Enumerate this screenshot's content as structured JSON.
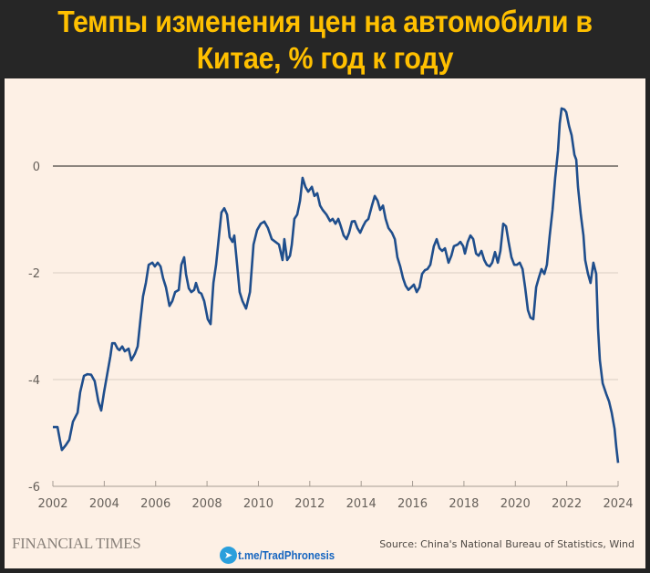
{
  "title": "Темпы изменения цен на автомобили в Китае, % год к году",
  "branding": {
    "logo": "FINANCIAL TIMES",
    "telegram": "t.me/TradPhronesis",
    "telegram_icon": "telegram-icon"
  },
  "source": "Source: China's National Bureau of Statistics, Wind",
  "colors": {
    "line": "#1f4e8c",
    "title": "#ffc000",
    "background": "#fdf0e5",
    "header": "#262626"
  },
  "chart_data": {
    "type": "line",
    "title": "Темпы изменения цен на автомобили в Китае, % год к году",
    "xlabel": "",
    "ylabel": "",
    "xlim": [
      2002,
      2024
    ],
    "ylim": [
      -6,
      1.2
    ],
    "xticks": [
      "2002",
      "2004",
      "2006",
      "2008",
      "2010",
      "2012",
      "2014",
      "2016",
      "2018",
      "2020",
      "2022",
      "2024"
    ],
    "yticks": [
      "0",
      "-2",
      "-4",
      "-6"
    ],
    "grid": true,
    "legend": "none",
    "x": [
      2002.0,
      2002.18,
      2002.28,
      2002.35,
      2002.5,
      2002.64,
      2002.78,
      2002.96,
      2003.06,
      2003.21,
      2003.35,
      2003.49,
      2003.63,
      2003.77,
      2003.88,
      2003.99,
      2004.13,
      2004.24,
      2004.31,
      2004.41,
      2004.52,
      2004.59,
      2004.7,
      2004.8,
      2004.95,
      2005.05,
      2005.19,
      2005.3,
      2005.41,
      2005.51,
      2005.62,
      2005.73,
      2005.87,
      2005.97,
      2006.08,
      2006.19,
      2006.29,
      2006.4,
      2006.54,
      2006.65,
      2006.76,
      2006.9,
      2007.0,
      2007.11,
      2007.18,
      2007.29,
      2007.39,
      2007.5,
      2007.57,
      2007.68,
      2007.78,
      2007.89,
      2008.03,
      2008.14,
      2008.25,
      2008.35,
      2008.46,
      2008.56,
      2008.67,
      2008.78,
      2008.88,
      2008.99,
      2009.06,
      2009.17,
      2009.27,
      2009.38,
      2009.52,
      2009.67,
      2009.81,
      2009.95,
      2010.09,
      2010.23,
      2010.37,
      2010.52,
      2010.66,
      2010.8,
      2010.94,
      2011.01,
      2011.12,
      2011.23,
      2011.3,
      2011.4,
      2011.51,
      2011.62,
      2011.72,
      2011.83,
      2011.94,
      2012.08,
      2012.18,
      2012.29,
      2012.4,
      2012.5,
      2012.65,
      2012.79,
      2012.89,
      2013.0,
      2013.11,
      2013.21,
      2013.32,
      2013.43,
      2013.53,
      2013.64,
      2013.75,
      2013.85,
      2013.96,
      2014.07,
      2014.17,
      2014.28,
      2014.42,
      2014.53,
      2014.64,
      2014.74,
      2014.85,
      2014.95,
      2015.06,
      2015.2,
      2015.31,
      2015.41,
      2015.52,
      2015.63,
      2015.73,
      2015.84,
      2015.95,
      2016.05,
      2016.16,
      2016.27,
      2016.37,
      2016.48,
      2016.58,
      2016.69,
      2016.83,
      2016.94,
      2017.05,
      2017.15,
      2017.26,
      2017.4,
      2017.51,
      2017.61,
      2017.76,
      2017.86,
      2017.97,
      2018.04,
      2018.15,
      2018.25,
      2018.36,
      2018.47,
      2018.57,
      2018.68,
      2018.79,
      2018.89,
      2019.0,
      2019.1,
      2019.21,
      2019.32,
      2019.42,
      2019.53,
      2019.64,
      2019.74,
      2019.85,
      2019.96,
      2020.06,
      2020.17,
      2020.28,
      2020.38,
      2020.49,
      2020.59,
      2020.7,
      2020.81,
      2020.91,
      2021.02,
      2021.13,
      2021.23,
      2021.34,
      2021.45,
      2021.55,
      2021.66,
      2021.73,
      2021.8,
      2021.91,
      2021.98,
      2022.09,
      2022.19,
      2022.3,
      2022.37,
      2022.44,
      2022.55,
      2022.65,
      2022.72,
      2022.83,
      2022.93,
      2023.04,
      2023.15,
      2023.22,
      2023.29,
      2023.4,
      2023.54,
      2023.65,
      2023.75,
      2023.86,
      2023.93,
      2024.0
    ],
    "y": [
      -4.89,
      -4.89,
      -5.15,
      -5.32,
      -5.23,
      -5.13,
      -4.79,
      -4.62,
      -4.24,
      -3.93,
      -3.9,
      -3.91,
      -4.03,
      -4.41,
      -4.58,
      -4.24,
      -3.86,
      -3.56,
      -3.32,
      -3.32,
      -3.42,
      -3.45,
      -3.38,
      -3.47,
      -3.42,
      -3.64,
      -3.52,
      -3.38,
      -2.87,
      -2.44,
      -2.19,
      -1.85,
      -1.81,
      -1.88,
      -1.81,
      -1.88,
      -2.1,
      -2.27,
      -2.62,
      -2.53,
      -2.36,
      -2.32,
      -1.85,
      -1.71,
      -2.02,
      -2.29,
      -2.36,
      -2.32,
      -2.19,
      -2.36,
      -2.39,
      -2.53,
      -2.87,
      -2.96,
      -2.19,
      -1.85,
      -1.33,
      -0.87,
      -0.79,
      -0.91,
      -1.33,
      -1.42,
      -1.3,
      -1.85,
      -2.36,
      -2.53,
      -2.67,
      -2.36,
      -1.47,
      -1.2,
      -1.08,
      -1.04,
      -1.16,
      -1.37,
      -1.42,
      -1.47,
      -1.76,
      -1.37,
      -1.76,
      -1.68,
      -1.47,
      -0.99,
      -0.91,
      -0.65,
      -0.22,
      -0.39,
      -0.48,
      -0.39,
      -0.56,
      -0.51,
      -0.74,
      -0.82,
      -0.91,
      -1.03,
      -0.99,
      -1.08,
      -0.99,
      -1.13,
      -1.3,
      -1.37,
      -1.25,
      -1.04,
      -1.03,
      -1.16,
      -1.25,
      -1.13,
      -1.04,
      -0.99,
      -0.74,
      -0.56,
      -0.65,
      -0.82,
      -0.74,
      -0.99,
      -1.16,
      -1.25,
      -1.37,
      -1.71,
      -1.88,
      -2.1,
      -2.24,
      -2.32,
      -2.27,
      -2.22,
      -2.36,
      -2.27,
      -2.02,
      -1.95,
      -1.93,
      -1.85,
      -1.5,
      -1.37,
      -1.54,
      -1.59,
      -1.54,
      -1.81,
      -1.68,
      -1.5,
      -1.47,
      -1.42,
      -1.5,
      -1.64,
      -1.42,
      -1.3,
      -1.37,
      -1.64,
      -1.68,
      -1.59,
      -1.76,
      -1.85,
      -1.88,
      -1.81,
      -1.61,
      -1.81,
      -1.59,
      -1.08,
      -1.13,
      -1.42,
      -1.71,
      -1.85,
      -1.85,
      -1.81,
      -1.93,
      -2.27,
      -2.7,
      -2.84,
      -2.87,
      -2.27,
      -2.1,
      -1.93,
      -2.02,
      -1.85,
      -1.3,
      -0.82,
      -0.22,
      0.29,
      0.8,
      1.08,
      1.06,
      1.01,
      0.75,
      0.58,
      0.21,
      0.12,
      -0.39,
      -0.91,
      -1.3,
      -1.76,
      -2.02,
      -2.19,
      -1.81,
      -2.02,
      -3.04,
      -3.64,
      -4.07,
      -4.27,
      -4.41,
      -4.62,
      -4.92,
      -5.26,
      -5.56
    ]
  }
}
